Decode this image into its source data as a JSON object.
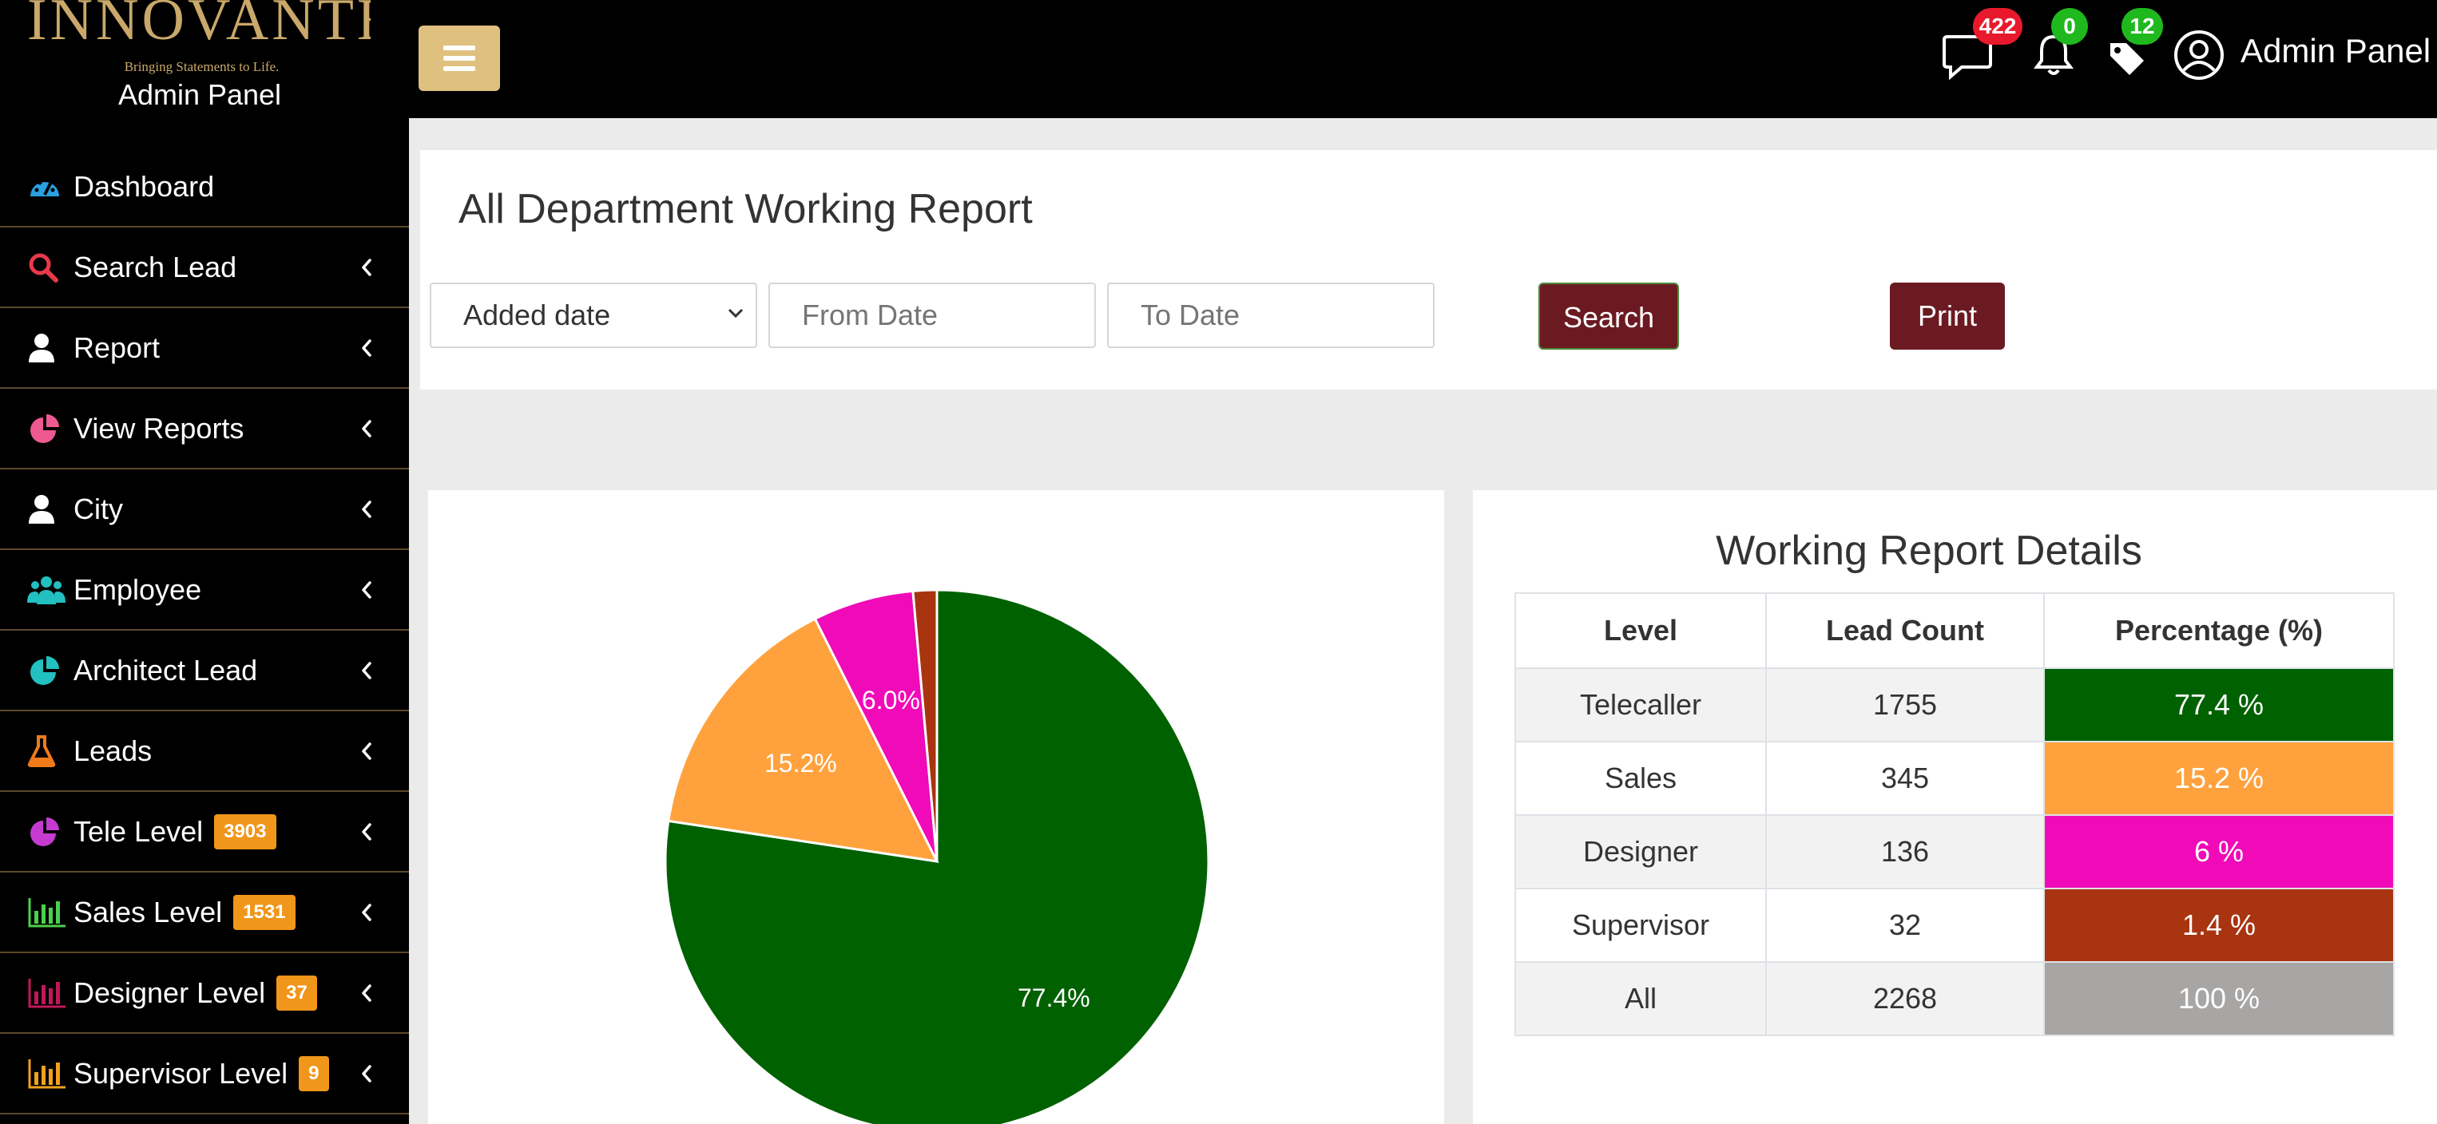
{
  "brand": {
    "logo": "INNOVANTE",
    "tagline": "Bringing Statements to Life.",
    "panel": "Admin Panel"
  },
  "sidebar": {
    "items": [
      {
        "label": "Dashboard",
        "icon": "dashboard-gauge-icon",
        "color": "#2aa0e0",
        "has_chevron": false
      },
      {
        "label": "Search Lead",
        "icon": "search-icon",
        "color": "#e8394a",
        "has_chevron": true
      },
      {
        "label": "Report",
        "icon": "user-icon",
        "color": "#ffffff",
        "has_chevron": true
      },
      {
        "label": "View Reports",
        "icon": "pie-chart-icon",
        "color": "#ee5a8f",
        "has_chevron": true
      },
      {
        "label": "City",
        "icon": "user-icon",
        "color": "#ffffff",
        "has_chevron": true
      },
      {
        "label": "Employee",
        "icon": "users-icon",
        "color": "#22c0c0",
        "has_chevron": true
      },
      {
        "label": "Architect Lead",
        "icon": "pie-chart-icon",
        "color": "#22c0c0",
        "has_chevron": true
      },
      {
        "label": "Leads",
        "icon": "flask-icon",
        "color": "#f07a1a",
        "has_chevron": true
      },
      {
        "label": "Tele Level",
        "icon": "pie-chart-icon",
        "color": "#c53bd0",
        "badge": "3903",
        "has_chevron": true
      },
      {
        "label": "Sales Level",
        "icon": "bar-chart-icon",
        "color": "#4cd04c",
        "badge": "1531",
        "has_chevron": true
      },
      {
        "label": "Designer Level",
        "icon": "bar-chart-icon",
        "color": "#c0185a",
        "badge": "37",
        "has_chevron": true
      },
      {
        "label": "Supervisor Level",
        "icon": "bar-chart-icon",
        "color": "#f0a020",
        "badge": "9",
        "has_chevron": true
      }
    ]
  },
  "topbar": {
    "messages_count": "422",
    "notifications_count": "0",
    "tags_count": "12",
    "user_label": "Admin Panel",
    "colors": {
      "messages_badge": "#e8192c",
      "notifications_badge": "#1fb81f",
      "tags_badge": "#1fb81f"
    }
  },
  "filter": {
    "title": "All Department Working Report",
    "date_type_selected": "Added date",
    "from_placeholder": "From Date",
    "to_placeholder": "To Date",
    "search_label": "Search",
    "print_label": "Print"
  },
  "chart_data": {
    "type": "pie",
    "categories": [
      "Telecaller",
      "Sales",
      "Designer",
      "Supervisor"
    ],
    "values": [
      1755,
      345,
      136,
      32
    ],
    "labels": [
      "77.4%",
      "15.2%",
      "6.0%",
      ""
    ],
    "colors": [
      "#006100",
      "#ffa23e",
      "#f00ab8",
      "#a83410"
    ],
    "title": ""
  },
  "table": {
    "title": "Working Report Details",
    "headers": [
      "Level",
      "Lead Count",
      "Percentage (%)"
    ],
    "rows": [
      {
        "level": "Telecaller",
        "count": "1755",
        "percent": "77.4 %",
        "color": "#006100"
      },
      {
        "level": "Sales",
        "count": "345",
        "percent": "15.2 %",
        "color": "#ffa23e"
      },
      {
        "level": "Designer",
        "count": "136",
        "percent": "6 %",
        "color": "#f00ab8"
      },
      {
        "level": "Supervisor",
        "count": "32",
        "percent": "1.4 %",
        "color": "#a83410"
      },
      {
        "level": "All",
        "count": "2268",
        "percent": "100 %",
        "color": "#a8a5a5"
      }
    ]
  }
}
